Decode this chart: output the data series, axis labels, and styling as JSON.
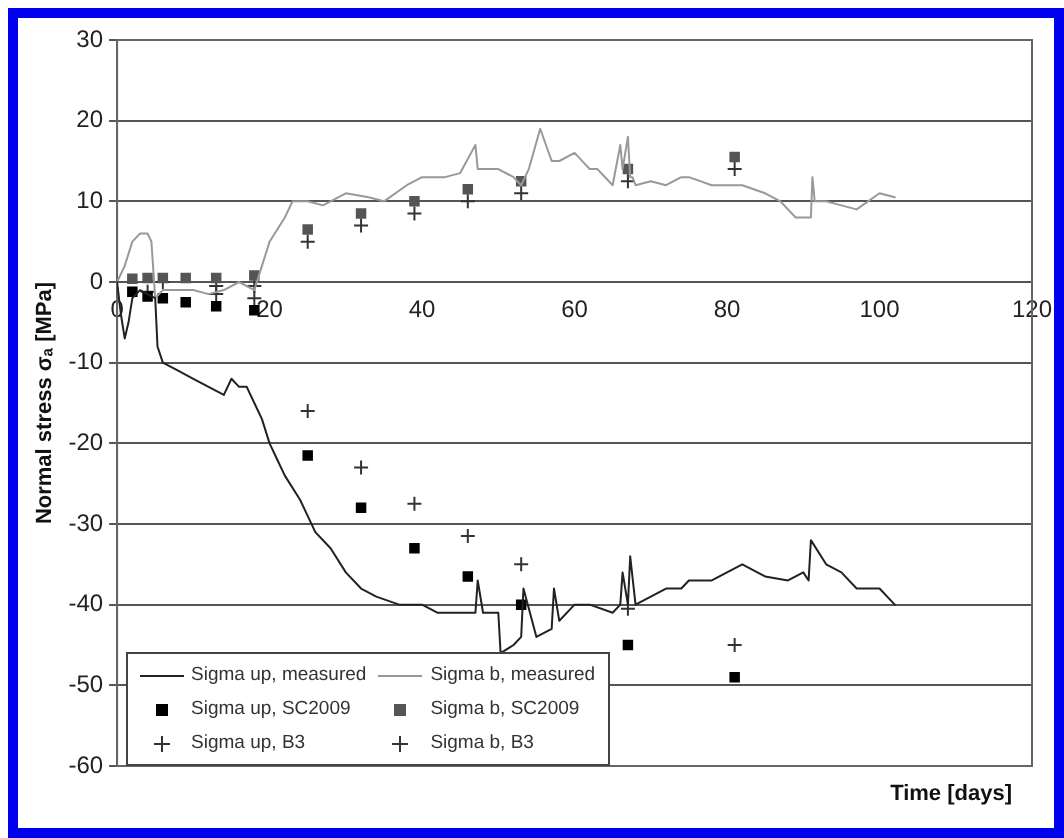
{
  "chart_data": {
    "type": "line",
    "ylabel": "Normal stress σₐ [MPa]",
    "xlabel": "Time [days]",
    "xlim": [
      0,
      120
    ],
    "xticks": [
      0,
      20,
      40,
      60,
      80,
      100,
      120
    ],
    "ylim": [
      -60,
      30
    ],
    "yticks": [
      -60,
      -50,
      -40,
      -30,
      -20,
      -10,
      0,
      10,
      20,
      30
    ],
    "grid": "y",
    "legend": "bottom left",
    "series": [
      {
        "name": "Sigma up, measured",
        "marker": "none",
        "color": "#222222",
        "x": [
          0,
          0.5,
          1,
          1.5,
          2,
          3,
          4,
          5,
          5.3,
          6,
          8,
          10,
          12,
          14,
          15,
          16,
          17,
          18,
          19,
          20,
          21,
          22,
          24,
          26,
          28,
          30,
          32,
          34,
          37,
          40,
          42,
          44,
          46,
          47,
          47.3,
          48,
          50,
          50.3,
          52,
          53,
          53.3,
          55,
          57,
          57.3,
          58,
          60,
          62,
          65,
          66,
          66.3,
          67,
          67.3,
          68,
          70,
          72,
          74,
          75,
          78,
          80,
          82,
          85,
          88,
          90,
          90.7,
          91,
          93,
          95,
          97,
          100,
          102
        ],
        "values": [
          0,
          -4,
          -7,
          -5,
          -2,
          -1,
          -1.5,
          -2,
          -8,
          -10,
          -11,
          -12,
          -13,
          -14,
          -12,
          -13,
          -13,
          -15,
          -17,
          -20,
          -22,
          -24,
          -27,
          -31,
          -33,
          -36,
          -38,
          -39,
          -40,
          -40,
          -41,
          -41,
          -41,
          -41,
          -37,
          -41,
          -41,
          -46,
          -45,
          -44,
          -38,
          -44,
          -43,
          -38,
          -42,
          -40,
          -40,
          -41,
          -40,
          -36,
          -40,
          -34,
          -40,
          -39,
          -38,
          -38,
          -37,
          -37,
          -36,
          -35,
          -36.5,
          -37,
          -36,
          -37,
          -32,
          -35,
          -36,
          -38,
          -38,
          -40
        ]
      },
      {
        "name": "Sigma b, measured",
        "marker": "none",
        "color": "#999999",
        "x": [
          0,
          1,
          2,
          3,
          4,
          4.5,
          5,
          6,
          8,
          10,
          12,
          14,
          16,
          18,
          19,
          20,
          22,
          23,
          25,
          27,
          30,
          33,
          35,
          38,
          40,
          43,
          45,
          47,
          47.3,
          48,
          50,
          52,
          53,
          54,
          55.5,
          57,
          58,
          60,
          62,
          63,
          65,
          66,
          66.3,
          67,
          67.3,
          67.6,
          68,
          70,
          72,
          74,
          75,
          78,
          80,
          82,
          85,
          87,
          89,
          91,
          91.2,
          91.5,
          93,
          95,
          97,
          100,
          102
        ],
        "values": [
          0,
          2,
          5,
          6,
          6,
          5,
          -2,
          -1,
          -1,
          -1,
          -1.5,
          -1,
          0,
          -1,
          2,
          5,
          8,
          10,
          10,
          9.5,
          11,
          10.5,
          10,
          12,
          13,
          13,
          13.5,
          17,
          14,
          14,
          14,
          13,
          12,
          14,
          19,
          15,
          15,
          16,
          14,
          14,
          12,
          17,
          14,
          18,
          13,
          13,
          12,
          12.5,
          12,
          13,
          13,
          12,
          12,
          12,
          11,
          10,
          8,
          8,
          13,
          10,
          10,
          9.5,
          9,
          11,
          10.5
        ]
      },
      {
        "name": "Sigma up, SC2009",
        "type": "scatter",
        "marker": "square",
        "color": "#000000",
        "x": [
          2,
          4,
          6,
          9,
          13,
          18,
          25,
          32,
          39,
          46,
          53,
          67,
          81
        ],
        "values": [
          -1.2,
          -1.8,
          -2,
          -2.5,
          -3,
          -3.5,
          -21.5,
          -28,
          -33,
          -36.5,
          -40,
          -45,
          -49
        ]
      },
      {
        "name": "Sigma b, SC2009",
        "type": "scatter",
        "marker": "square",
        "color": "#555555",
        "x": [
          2,
          4,
          6,
          9,
          13,
          18,
          25,
          32,
          39,
          46,
          53,
          67,
          81
        ],
        "values": [
          0.4,
          0.5,
          0.5,
          0.5,
          0.5,
          0.8,
          6.5,
          8.5,
          10,
          11.5,
          12.5,
          14,
          15.5
        ]
      },
      {
        "name": "Sigma up, B3",
        "type": "scatter",
        "marker": "cross",
        "color": "#333333",
        "x": [
          4,
          9,
          13,
          18,
          25,
          32,
          39,
          46,
          53,
          67,
          81
        ],
        "values": [
          -1.2,
          null,
          -1.5,
          -2,
          -16,
          -23,
          -27.5,
          -31.5,
          -35,
          -40.5,
          -45
        ]
      },
      {
        "name": "Sigma b, B3",
        "type": "scatter",
        "marker": "cross",
        "color": "#333333",
        "x": [
          6,
          9,
          13,
          18,
          25,
          32,
          39,
          46,
          53,
          67,
          81
        ],
        "values": [
          0,
          null,
          -0.5,
          -0.5,
          5,
          7,
          8.5,
          10,
          11,
          12.5,
          14
        ]
      }
    ]
  }
}
